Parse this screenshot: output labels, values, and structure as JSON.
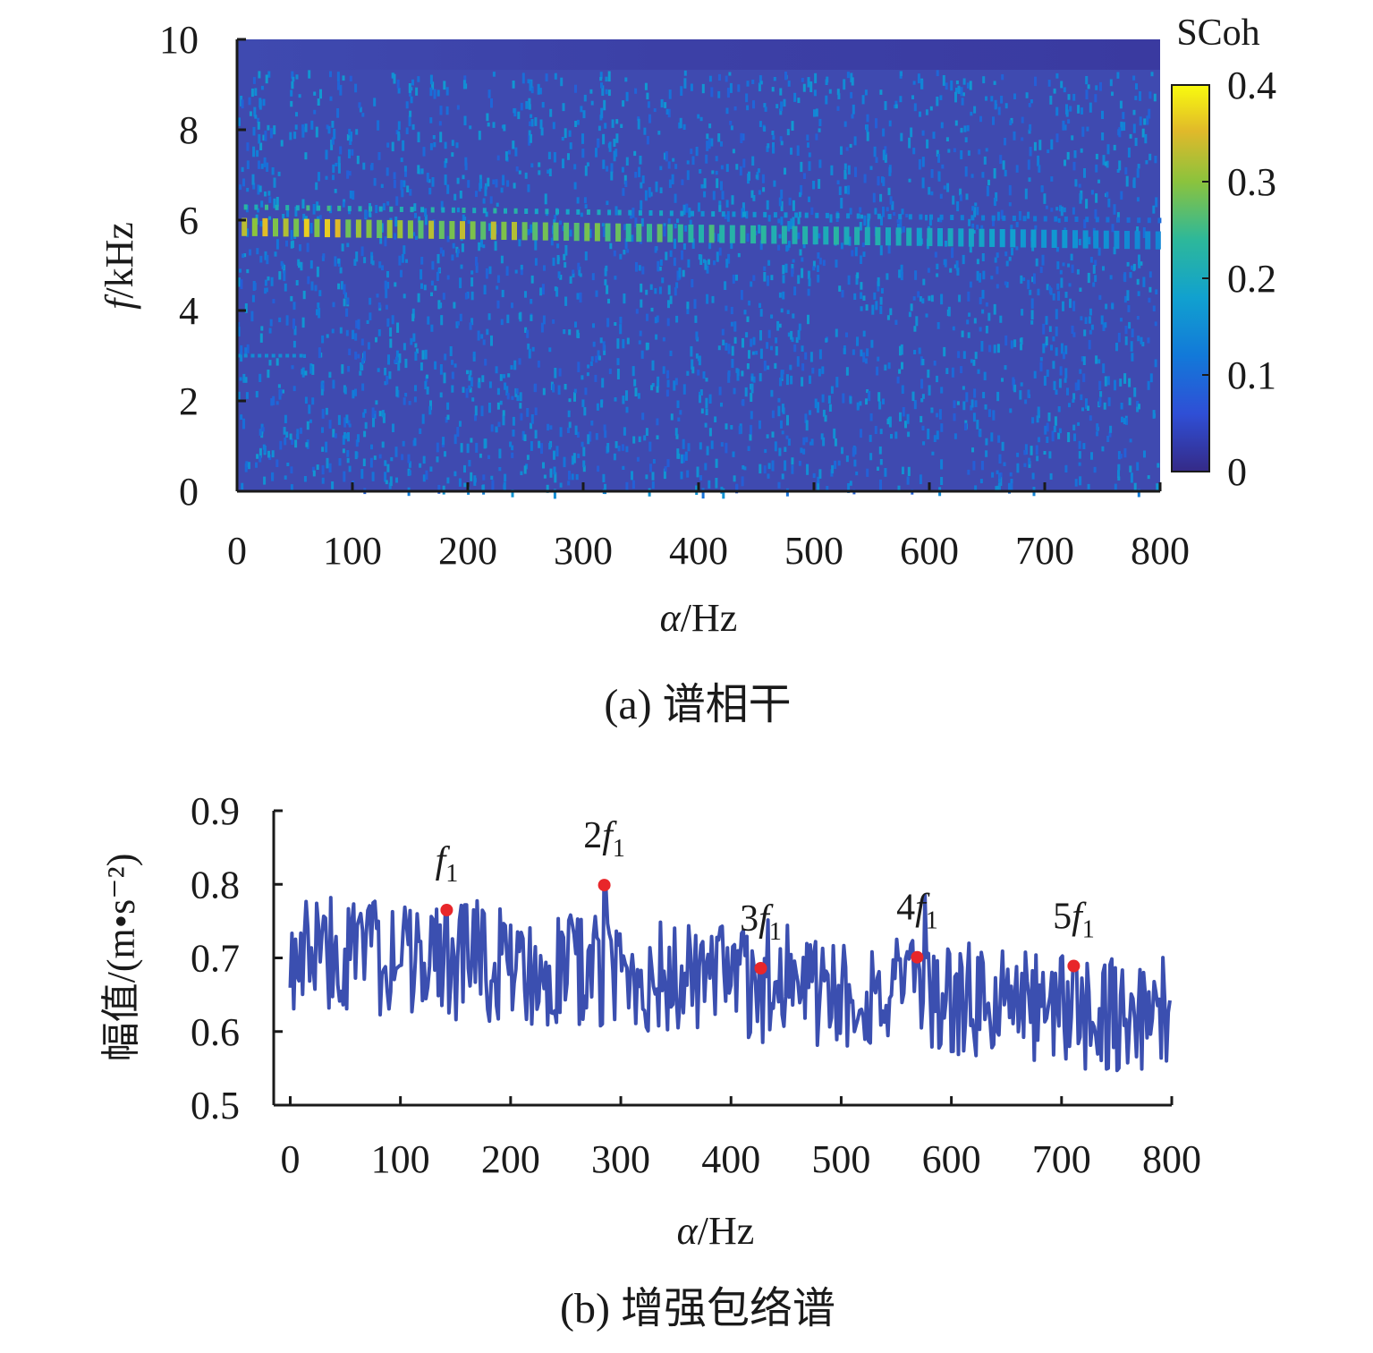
{
  "panel_a": {
    "caption": "(a) 谱相干",
    "xlabel": "α/Hz",
    "ylabel": "f/kHz",
    "colorbar_title": "SCoh",
    "colorbar_ticks": [
      "0",
      "0.1",
      "0.2",
      "0.3",
      "0.4"
    ],
    "xticks": [
      "0",
      "100",
      "200",
      "300",
      "400",
      "500",
      "600",
      "700",
      "800"
    ],
    "yticks": [
      "0",
      "2",
      "4",
      "6",
      "8",
      "10"
    ]
  },
  "panel_b": {
    "caption": "(b) 增强包络谱",
    "xlabel": "α/Hz",
    "ylabel": "幅值/(m•s⁻²)",
    "xticks": [
      "0",
      "100",
      "200",
      "300",
      "400",
      "500",
      "600",
      "700",
      "800"
    ],
    "yticks": [
      "0.5",
      "0.6",
      "0.7",
      "0.8",
      "0.9"
    ],
    "peaks": [
      {
        "label": "f",
        "prefix": "",
        "sub": "1"
      },
      {
        "label": "f",
        "prefix": "2",
        "sub": "1"
      },
      {
        "label": "f",
        "prefix": "3",
        "sub": "1"
      },
      {
        "label": "f",
        "prefix": "4",
        "sub": "1"
      },
      {
        "label": "f",
        "prefix": "5",
        "sub": "1"
      }
    ]
  },
  "colors": {
    "heatmap_low": "#3e3ea0",
    "heatmap_mid": "#2fa6c9",
    "heatmap_high": "#f6e43a",
    "line": "#3b4fb0",
    "peak_marker": "#e8262a"
  },
  "chart_data": [
    {
      "type": "heatmap",
      "title": "",
      "xlabel": "α/Hz",
      "ylabel": "f/kHz",
      "xlim": [
        0,
        800
      ],
      "ylim": [
        0,
        10
      ],
      "colorbar": {
        "label": "SCoh",
        "range": [
          0,
          0.4
        ]
      },
      "features": [
        {
          "desc": "coherence band",
          "f_kHz_range": [
            5.5,
            6.2
          ],
          "alpha_Hz_range": [
            0,
            800
          ],
          "peak_value": 0.35
        },
        {
          "desc": "faint line",
          "f_kHz": 3.0,
          "alpha_Hz_range": [
            0,
            60
          ],
          "value": 0.15
        }
      ],
      "background_value": 0.08
    },
    {
      "type": "line",
      "title": "",
      "xlabel": "α/Hz",
      "ylabel": "幅值/(m•s⁻²)",
      "xlim": [
        0,
        800
      ],
      "ylim": [
        0.5,
        0.9
      ],
      "series": [
        {
          "values_desc": "noisy envelope spectrum fluctuating mostly between 0.55 and 0.84, slowly decreasing trend"
        }
      ],
      "peak_points": [
        {
          "x": 142,
          "y": 0.765,
          "label": "f1"
        },
        {
          "x": 285,
          "y": 0.799,
          "label": "2f1"
        },
        {
          "x": 427,
          "y": 0.686,
          "label": "3f1"
        },
        {
          "x": 569,
          "y": 0.701,
          "label": "4f1"
        },
        {
          "x": 711,
          "y": 0.689,
          "label": "5f1"
        }
      ]
    }
  ]
}
